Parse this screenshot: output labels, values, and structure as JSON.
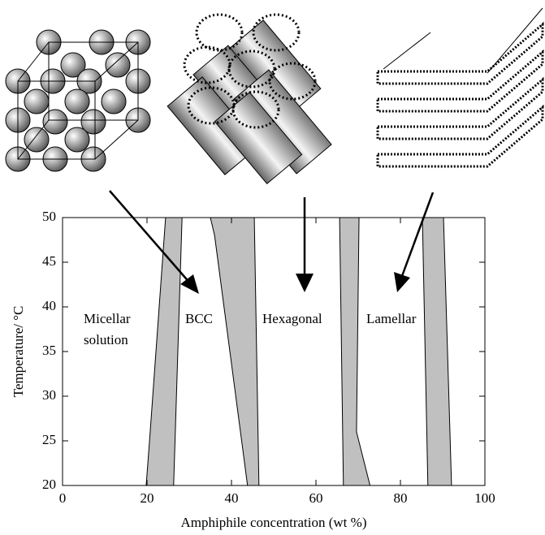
{
  "chart_data": {
    "type": "phase",
    "xlabel": "Amphiphile concentration (wt %)",
    "ylabel": "Temperature/ °C",
    "xlim": [
      0,
      100
    ],
    "xticks": [
      0,
      20,
      40,
      60,
      80,
      100
    ],
    "ylim": [
      20,
      50
    ],
    "yticks": [
      20,
      25,
      30,
      35,
      40,
      45,
      50
    ],
    "regions": [
      {
        "color": "#c0c0c0",
        "x": [
          19.8,
          20.6,
          24.4,
          28.3,
          26.3
        ],
        "y": [
          20,
          25,
          50,
          50,
          20
        ]
      },
      {
        "color": "#c0c0c0",
        "x": [
          43.8,
          36,
          35,
          45.4,
          46.5
        ],
        "y": [
          20,
          48,
          50,
          50,
          20
        ]
      },
      {
        "color": "#c0c0c0",
        "x": [
          66.5,
          65.6,
          70.2,
          69.6,
          72.8
        ],
        "y": [
          20,
          50,
          50,
          26,
          20
        ]
      },
      {
        "color": "#c0c0c0",
        "x": [
          86.5,
          85.2,
          90.2,
          92.1
        ],
        "y": [
          20,
          50,
          50,
          20
        ]
      }
    ],
    "annotations": [
      "Micellar",
      "solution",
      "BCC",
      "Hexagonal",
      "Lamellar"
    ]
  }
}
